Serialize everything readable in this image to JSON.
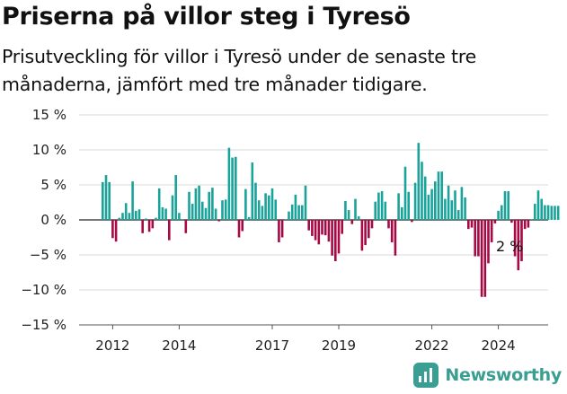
{
  "title": "Priserna på villor steg i Tyresö",
  "subtitle": "Prisutveckling för villor i Tyresö under de senaste tre månaderna, jämfört med tre månader tidigare.",
  "brand": "Newsworthy",
  "colors": {
    "positive": "#1aa39a",
    "negative": "#a60a45",
    "brand": "#3a9e92"
  },
  "chart_data": {
    "type": "bar",
    "title": "Priserna på villor steg i Tyresö",
    "ylim": [
      -15,
      15
    ],
    "yticks": [
      15,
      10,
      5,
      0,
      -5,
      -10,
      -15
    ],
    "ytick_labels": [
      "15 %",
      "10 %",
      "5 %",
      "0 %",
      "−5 %",
      "−10 %",
      "−15 %"
    ],
    "xtick_labels": [
      "2012",
      "2014",
      "2017",
      "2019",
      "2022",
      "2024"
    ],
    "xtick_positions": [
      3,
      23,
      51,
      71,
      99,
      119
    ],
    "annotation": {
      "text": "2 %",
      "index": 126
    },
    "grid": true,
    "values": [
      5.4,
      6.4,
      5.4,
      -2.6,
      -3.1,
      0.3,
      1.0,
      2.4,
      1.0,
      5.5,
      1.3,
      1.5,
      -1.9,
      0.2,
      -1.7,
      -1.2,
      0.3,
      4.5,
      1.8,
      1.6,
      -2.9,
      3.5,
      6.4,
      1.0,
      0.1,
      -1.9,
      4.0,
      2.3,
      4.5,
      4.9,
      2.6,
      1.7,
      4.0,
      4.6,
      1.6,
      -0.2,
      2.8,
      2.9,
      10.3,
      8.9,
      9.0,
      -2.5,
      -1.6,
      4.4,
      0.4,
      8.2,
      5.3,
      2.8,
      2.0,
      3.8,
      3.5,
      4.5,
      2.9,
      -3.2,
      -2.5,
      0.1,
      1.2,
      2.2,
      3.6,
      2.1,
      2.1,
      4.9,
      -1.5,
      -2.3,
      -2.9,
      -3.5,
      -2.1,
      -2.2,
      -3.1,
      -5.1,
      -5.9,
      -4.8,
      -2.0,
      2.7,
      1.4,
      -0.6,
      3.0,
      0.5,
      -4.4,
      -3.6,
      -2.6,
      -1.2,
      2.6,
      3.9,
      4.1,
      2.6,
      -1.2,
      -3.2,
      -5.1,
      3.8,
      1.8,
      7.6,
      4.0,
      -0.3,
      5.3,
      11.0,
      8.3,
      6.2,
      3.6,
      4.4,
      5.5,
      6.9,
      6.9,
      3.0,
      4.9,
      2.8,
      4.2,
      1.4,
      4.7,
      3.2,
      -1.3,
      -1.1,
      -5.2,
      -5.2,
      -11.0,
      -11.0,
      -6.2,
      -3.2,
      -0.5,
      1.3,
      2.1,
      4.1,
      4.1,
      -0.4,
      -5.2,
      -7.2,
      -5.9,
      -1.3,
      -1.1,
      0.1,
      2.3,
      4.2,
      3.0,
      2.1,
      2.1,
      2.0,
      2.0,
      2.0
    ]
  }
}
